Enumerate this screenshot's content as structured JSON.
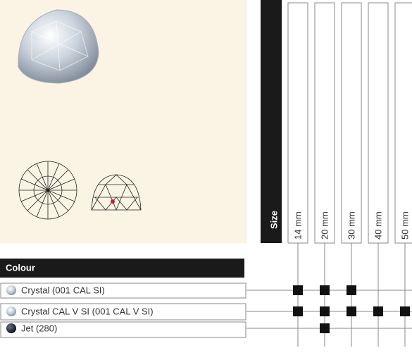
{
  "size_header": "Size",
  "sizes": [
    "14 mm",
    "20 mm",
    "30 mm",
    "40 mm",
    "50 mm"
  ],
  "colour_header": "Colour",
  "colours": [
    {
      "name": "Crystal (001 CAL SI)",
      "available": [
        true,
        true,
        true,
        false,
        false
      ]
    },
    {
      "name": "Crystal CAL V SI (001 CAL V SI)",
      "available": [
        true,
        true,
        true,
        true,
        true
      ]
    },
    {
      "name": "Jet (280)",
      "available": [
        false,
        true,
        false,
        false,
        false
      ]
    }
  ]
}
